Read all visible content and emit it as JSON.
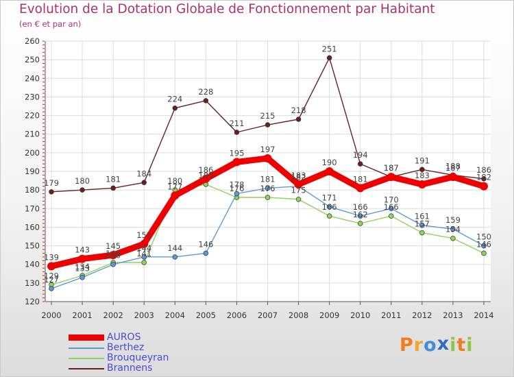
{
  "chart_data": {
    "type": "line",
    "title": "Evolution de la Dotation Globale de Fonctionnement par Habitant",
    "subtitle": "(en € et par an)",
    "x": [
      "2000",
      "2001",
      "2002",
      "2003",
      "2004",
      "2005",
      "2006",
      "2007",
      "2008",
      "2009",
      "2010",
      "2011",
      "2012",
      "2013",
      "2014"
    ],
    "ylim": [
      120,
      260
    ],
    "yticks": [
      120,
      130,
      140,
      150,
      160,
      170,
      180,
      190,
      200,
      210,
      220,
      230,
      240,
      250,
      260
    ],
    "grid": true,
    "legend_position": "bottom-left",
    "series": [
      {
        "name": "AUROS",
        "color": "#ee0000",
        "values": [
          139,
          143,
          145,
          151,
          177,
          186,
          195,
          197,
          183,
          190,
          181,
          187,
          183,
          187,
          182
        ]
      },
      {
        "name": "Berthez",
        "color": "#5a9bd5",
        "values": [
          127,
          133,
          140,
          144,
          144,
          146,
          178,
          181,
          182,
          171,
          166,
          170,
          161,
          159,
          150
        ]
      },
      {
        "name": "Brouqueyran",
        "color": "#8ed45a",
        "values": [
          129,
          134,
          141,
          141,
          180,
          183,
          176,
          176,
          175,
          166,
          162,
          166,
          157,
          154,
          146
        ]
      },
      {
        "name": "Brannens",
        "color": "#6b1f1f",
        "values": [
          179,
          180,
          181,
          184,
          224,
          228,
          211,
          215,
          218,
          251,
          194,
          187,
          191,
          188,
          186
        ]
      }
    ]
  },
  "logo": {
    "letters": [
      "P",
      "r",
      "o",
      "x",
      "i",
      "t",
      "i"
    ],
    "colors": [
      "#f07d1a",
      "#f4a52a",
      "#3d8fd8",
      "#2d6cc0",
      "#8cc63f",
      "#f07d1a",
      "#8cc63f"
    ]
  }
}
